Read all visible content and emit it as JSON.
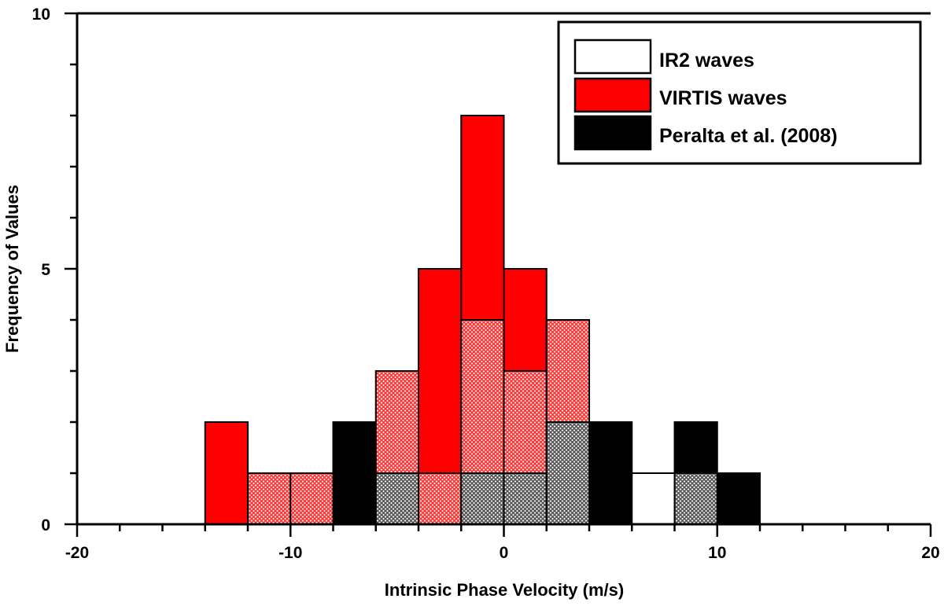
{
  "chart_data": {
    "type": "bar",
    "subtype": "overlapping-histogram",
    "title": "",
    "xlabel": "Intrinsic Phase Velocity (m/s)",
    "ylabel": "Frequency of Values",
    "xlim": [
      -20,
      20
    ],
    "ylim": [
      0,
      10
    ],
    "x_major_ticks": [
      -20,
      -10,
      0,
      10,
      20
    ],
    "x_minor_step": 2,
    "y_major_ticks": [
      0,
      5,
      10
    ],
    "y_minor_step": 1,
    "bin_width": 2,
    "bins": [
      -14,
      -12,
      -10,
      -8,
      -6,
      -4,
      -2,
      0,
      2,
      4,
      6,
      8,
      10,
      12
    ],
    "legend_position": "top-right",
    "series": [
      {
        "name": "IR2 waves",
        "color": "#ffffff",
        "pattern": "solid",
        "values": [
          0,
          1,
          1,
          0,
          3,
          1,
          4,
          3,
          4,
          0,
          1,
          1,
          0,
          0
        ]
      },
      {
        "name": "VIRTIS waves",
        "color": "#ff0000",
        "pattern": "solid",
        "values": [
          2,
          0,
          0,
          0,
          0,
          5,
          8,
          5,
          0,
          0,
          0,
          0,
          0,
          0
        ]
      },
      {
        "name": "Peralta et al. (2008)",
        "color": "#000000",
        "pattern": "solid",
        "values": [
          0,
          0,
          0,
          2,
          1,
          0,
          1,
          1,
          2,
          2,
          0,
          2,
          1,
          0
        ]
      }
    ],
    "draw_order": [
      {
        "series": 1,
        "bin": 0,
        "style": "red"
      },
      {
        "series": 0,
        "bin": 1,
        "style": "redhatch"
      },
      {
        "series": 0,
        "bin": 2,
        "style": "redhatch"
      },
      {
        "series": 2,
        "bin": 3,
        "style": "black"
      },
      {
        "series": 0,
        "bin": 4,
        "style": "redhatch"
      },
      {
        "series": 2,
        "bin": 4,
        "style": "grayhatch"
      },
      {
        "series": 1,
        "bin": 5,
        "style": "red"
      },
      {
        "series": 0,
        "bin": 5,
        "style": "redhatch"
      },
      {
        "series": 1,
        "bin": 6,
        "style": "red"
      },
      {
        "series": 0,
        "bin": 6,
        "style": "redhatch"
      },
      {
        "series": 2,
        "bin": 6,
        "style": "grayhatch"
      },
      {
        "series": 1,
        "bin": 7,
        "style": "red"
      },
      {
        "series": 0,
        "bin": 7,
        "style": "redhatch"
      },
      {
        "series": 2,
        "bin": 7,
        "style": "grayhatch"
      },
      {
        "series": 0,
        "bin": 8,
        "style": "redhatch"
      },
      {
        "series": 2,
        "bin": 8,
        "style": "grayhatch"
      },
      {
        "series": 2,
        "bin": 9,
        "style": "black"
      },
      {
        "series": 0,
        "bin": 10,
        "style": "white"
      },
      {
        "series": 2,
        "bin": 11,
        "style": "black"
      },
      {
        "series": 0,
        "bin": 11,
        "style": "grayhatch"
      },
      {
        "series": 2,
        "bin": 12,
        "style": "black"
      }
    ]
  }
}
